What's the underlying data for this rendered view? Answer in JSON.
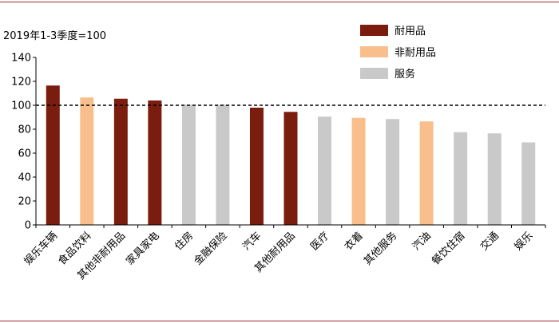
{
  "chart_data": {
    "type": "bar",
    "ylabel": "2019年1-3季度=100",
    "ylim": [
      0,
      140
    ],
    "yticks": [
      0,
      20,
      40,
      60,
      80,
      100,
      120,
      140
    ],
    "reference_line": 100,
    "categories": [
      "娱乐车辆",
      "食品饮料",
      "其他非耐用品",
      "家具家电",
      "住房",
      "金融保险",
      "汽车",
      "其他耐用品",
      "医疗",
      "衣着",
      "其他服务",
      "汽油",
      "餐饮住宿",
      "交通",
      "娱乐"
    ],
    "values": [
      116.5,
      106.5,
      105.5,
      104,
      100.5,
      100.5,
      98,
      94.5,
      90.5,
      89.5,
      88.5,
      86.5,
      77.5,
      76.5,
      69
    ],
    "groups": [
      "耐用品",
      "非耐用品",
      "耐用品",
      "耐用品",
      "服务",
      "服务",
      "耐用品",
      "耐用品",
      "服务",
      "非耐用品",
      "服务",
      "非耐用品",
      "服务",
      "服务",
      "服务"
    ],
    "legend": [
      {
        "name": "耐用品",
        "color": "#7b1d0e"
      },
      {
        "name": "非耐用品",
        "color": "#f8be8c"
      },
      {
        "name": "服务",
        "color": "#c9c9c9"
      }
    ],
    "grid": false,
    "legend_position": "top-right"
  }
}
